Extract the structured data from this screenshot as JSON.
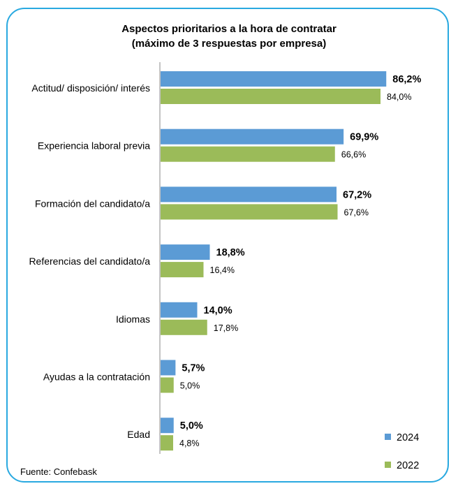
{
  "chart_data": {
    "type": "bar",
    "orientation": "horizontal",
    "title_lines": [
      "Aspectos prioritarios a la hora de contratar",
      "(máximo de 3 respuestas por empresa)"
    ],
    "categories": [
      "Actitud/ disposición/ interés",
      "Experiencia laboral previa",
      "Formación del candidato/a",
      "Referencias del candidato/a",
      "Idiomas",
      "Ayudas a la contratación",
      "Edad"
    ],
    "series": [
      {
        "name": "2024",
        "color": "#5b9bd5",
        "values": [
          86.2,
          69.9,
          67.2,
          18.8,
          14.0,
          5.7,
          5.0
        ],
        "labels": [
          "86,2%",
          "69,9%",
          "67,2%",
          "18,8%",
          "14,0%",
          "5,7%",
          "5,0%"
        ]
      },
      {
        "name": "2022",
        "color": "#9bbb59",
        "values": [
          84.0,
          66.6,
          67.6,
          16.4,
          17.8,
          5.0,
          4.8
        ],
        "labels": [
          "84,0%",
          "66,6%",
          "67,6%",
          "16,4%",
          "17,8%",
          "5,0%",
          "4,8%"
        ]
      }
    ],
    "xlim": [
      0,
      100
    ],
    "grid": false,
    "legend_position": "bottom-right"
  },
  "source": "Fuente: Confebask",
  "frame_color": "#29a9e0"
}
